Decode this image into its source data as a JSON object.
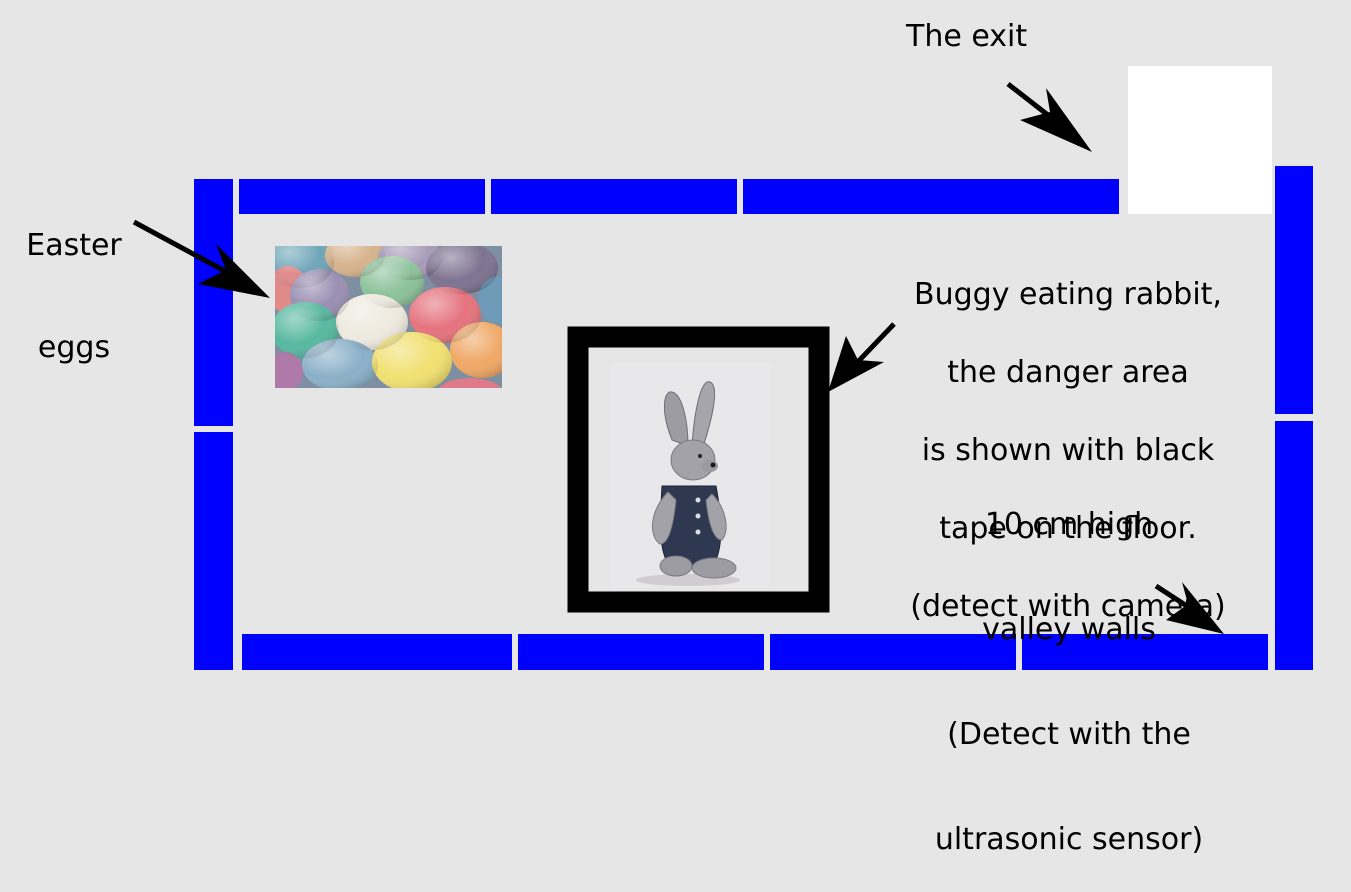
{
  "labels": {
    "exit": "The exit",
    "easter_eggs_line1": "Easter",
    "easter_eggs_line2": "eggs",
    "rabbit_lines": [
      "Buggy eating rabbit,",
      "the danger area",
      "is shown with black",
      "tape on the floor.",
      "(detect with camera)"
    ],
    "walls_lines": [
      "10 cm high",
      "valley walls",
      "(Detect with the",
      "ultrasonic sensor)"
    ]
  },
  "colors": {
    "background": "#e6e6e6",
    "wall": "#0000ff",
    "exit": "#ffffff",
    "danger_tape": "#000000",
    "arrow": "#000000"
  },
  "icons": {
    "eggs_photo": "easter-eggs-photo",
    "rabbit_photo": "plush-rabbit-photo"
  }
}
